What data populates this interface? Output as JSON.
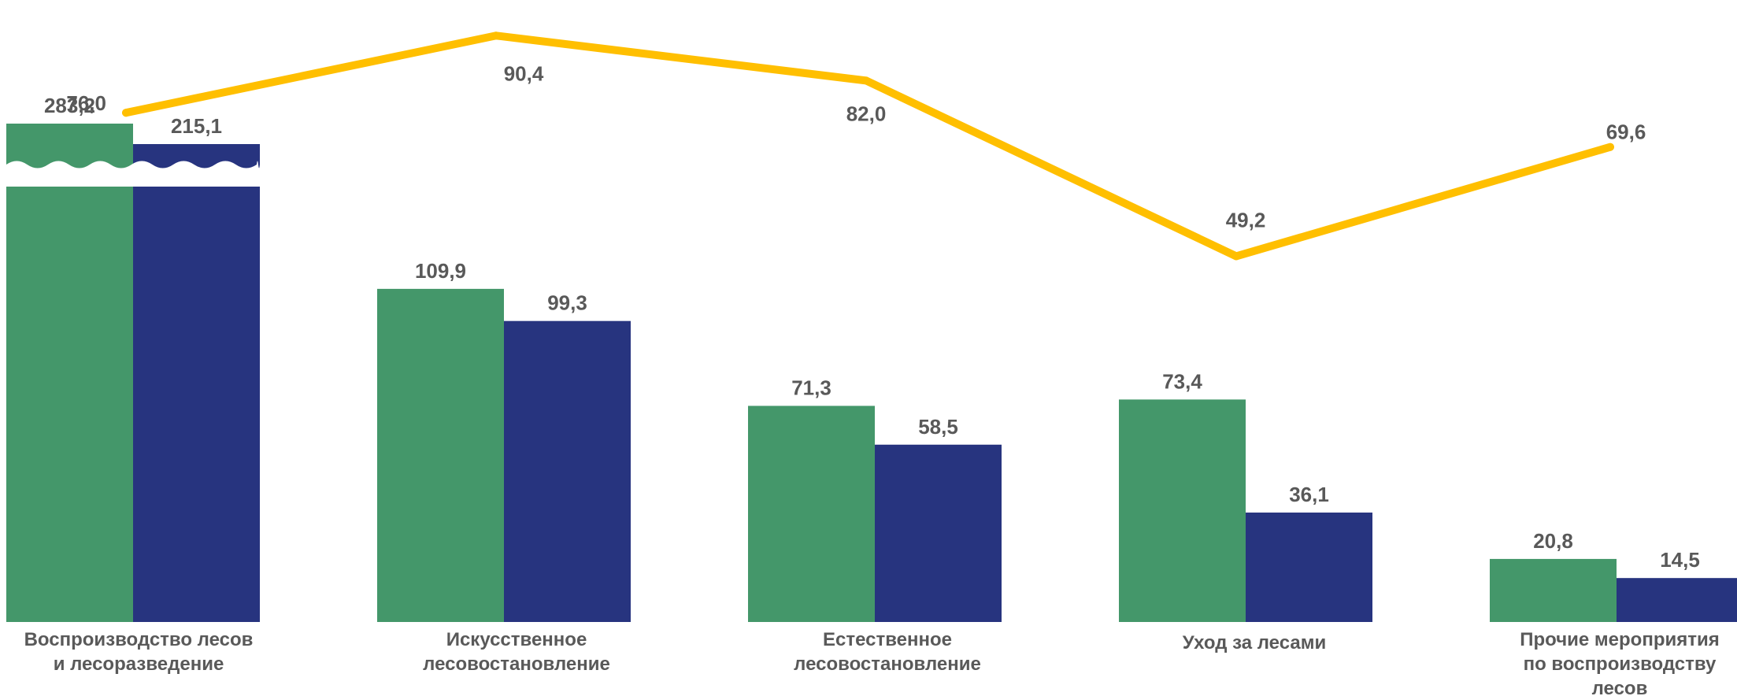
{
  "chart_data": {
    "type": "bar",
    "categories": [
      [
        "Воспроизводство лесов",
        "и лесоразведение"
      ],
      [
        "Искусственное",
        "лесовостановление"
      ],
      [
        "Естественное",
        "лесовостановление"
      ],
      [
        "Уход за лесами"
      ],
      [
        "Прочие мероприятия",
        "по воспроизводству",
        "лесов"
      ]
    ],
    "series": [
      {
        "values": [
          283.2,
          109.9,
          71.3,
          73.4,
          20.8
        ],
        "labels": [
          "283,2",
          "109,9",
          "71,3",
          "73,4",
          "20,8"
        ],
        "color": "#44976A"
      },
      {
        "values": [
          215.1,
          99.3,
          58.5,
          36.1,
          14.5
        ],
        "labels": [
          "215,1",
          "99,3",
          "58,5",
          "36,1",
          "14,5"
        ],
        "color": "#27347F"
      },
      {
        "type": "line",
        "values": [
          76.0,
          90.4,
          82.0,
          49.2,
          69.6
        ],
        "labels": [
          "76,0",
          "90,4",
          "82,0",
          "49,2",
          "69,6"
        ],
        "color": "#FFBF00"
      }
    ],
    "axis_break_on_first_category": true,
    "grid": false,
    "legend": "none"
  }
}
